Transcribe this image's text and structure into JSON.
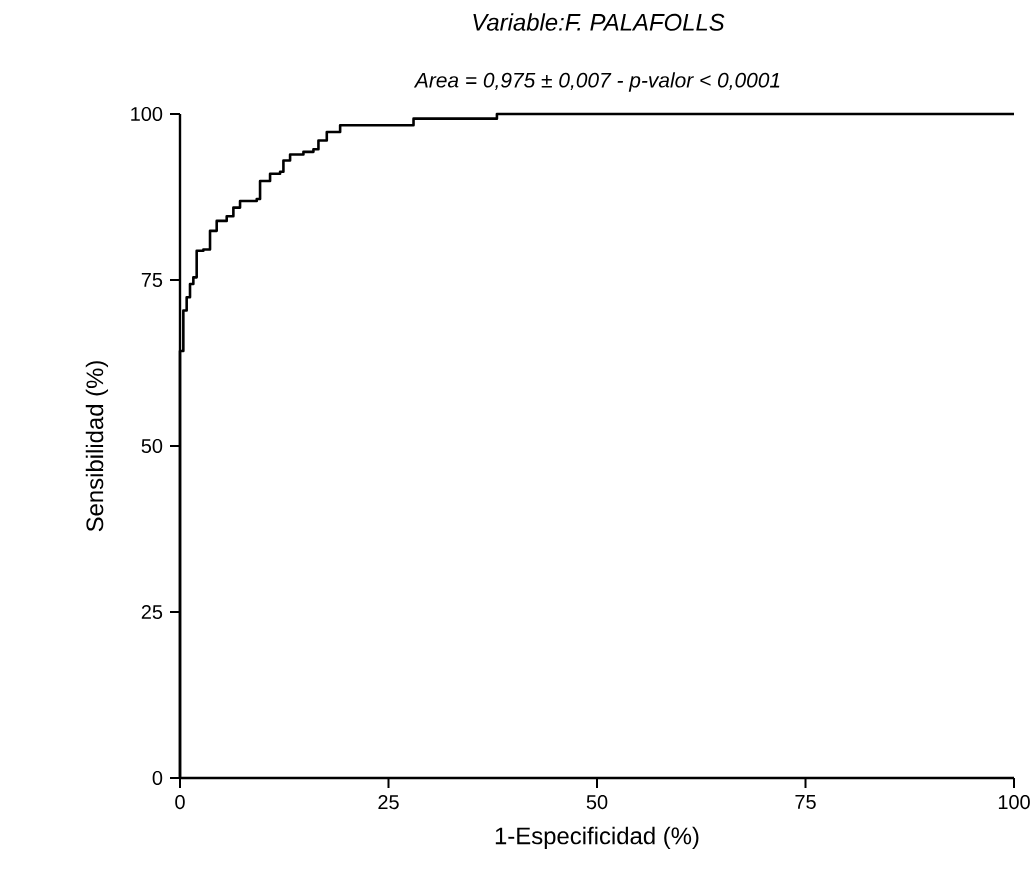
{
  "chart_data": {
    "type": "step",
    "title": "Variable:F. PALAFOLLS",
    "subtitle": "Area = 0,975 ± 0,007 - p-valor < 0,0001",
    "xlabel": "1-Especificidad (%)",
    "ylabel": "Sensibilidad (%)",
    "x": [
      0,
      0,
      0.4,
      0.8,
      1.2,
      1.6,
      2,
      2.8,
      3.6,
      4.4,
      5.6,
      6.4,
      7.2,
      9.2,
      9.6,
      10.8,
      12,
      12.4,
      13.2,
      14.8,
      16,
      16.6,
      17.6,
      19.2,
      26.8,
      28,
      37.6,
      38,
      100
    ],
    "values": [
      0,
      64.3,
      70.4,
      72.4,
      74.4,
      75.4,
      79.4,
      79.6,
      82.4,
      83.9,
      84.6,
      85.9,
      86.9,
      87.2,
      89.9,
      91,
      91.3,
      93,
      93.9,
      94.3,
      94.7,
      96,
      97.3,
      98.3,
      98.3,
      99.3,
      99.3,
      100,
      100
    ],
    "color": "#000000",
    "xlim": [
      0,
      100
    ],
    "ylim": [
      0,
      100
    ],
    "xticks": [
      0,
      25,
      50,
      75,
      100
    ],
    "yticks": [
      0,
      25,
      50,
      75,
      100
    ],
    "grid": false,
    "marker": "none",
    "line_style": "solid"
  }
}
